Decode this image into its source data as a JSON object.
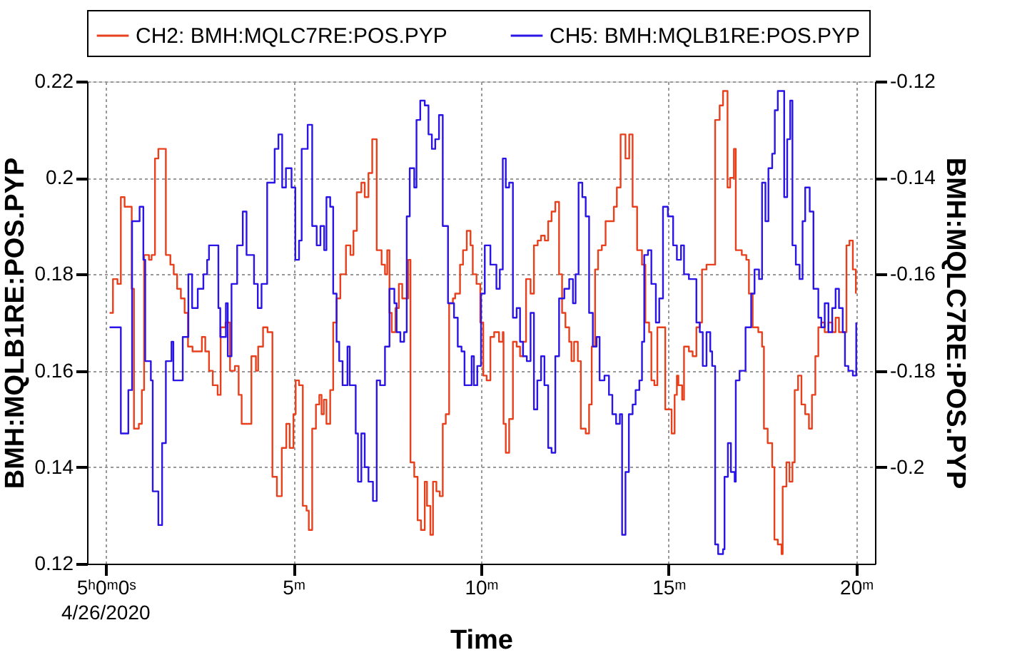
{
  "chart_data": {
    "type": "step",
    "xlabel": "Time",
    "ylabel": "BMH:MQLB1RE:POS.PYP",
    "y2label": "BMH:MQLC7RE:POS.PYP",
    "xlim": [
      -0.5,
      20.5
    ],
    "xticks": [
      {
        "value": 0,
        "label": "5ʰ0ᵐ0ˢ"
      },
      {
        "value": 5,
        "label": "5ᵐ"
      },
      {
        "value": 10,
        "label": "10ᵐ"
      },
      {
        "value": 15,
        "label": "15ᵐ"
      },
      {
        "value": 20,
        "label": "20ᵐ"
      }
    ],
    "ylim": [
      0.12,
      0.22
    ],
    "yticks": [
      0.12,
      0.14,
      0.16,
      0.18,
      0.2,
      0.22
    ],
    "y2lim": [
      -0.22,
      -0.12
    ],
    "y2ticks": [
      -0.2,
      -0.18,
      -0.16,
      -0.14,
      -0.12
    ],
    "grid": true,
    "legend": "top",
    "annotations": [
      "4/26/2020"
    ],
    "series": [
      {
        "name": "CH2: BMH:MQLC7RE:POS.PYP",
        "color": "#e8401c",
        "axis": "y2",
        "x": [
          0.1,
          0.19,
          0.31,
          0.4,
          0.5,
          0.62,
          0.69,
          0.75,
          0.88,
          0.96,
          1.02,
          1.15,
          1.22,
          1.31,
          1.4,
          1.6,
          1.72,
          1.81,
          1.9,
          2.0,
          2.1,
          2.19,
          2.31,
          2.44,
          2.56,
          2.65,
          2.75,
          2.85,
          2.98,
          3.06,
          3.19,
          3.31,
          3.44,
          3.54,
          3.62,
          3.75,
          3.88,
          4.0,
          4.06,
          4.19,
          4.31,
          4.44,
          4.56,
          4.69,
          4.81,
          4.9,
          5.0,
          5.06,
          5.15,
          5.25,
          5.35,
          5.41,
          5.5,
          5.6,
          5.69,
          5.75,
          5.81,
          5.88,
          5.98,
          6.06,
          6.15,
          6.25,
          6.4,
          6.52,
          6.6,
          6.69,
          6.81,
          6.9,
          7.0,
          7.1,
          7.22,
          7.35,
          7.44,
          7.5,
          7.56,
          7.62,
          7.72,
          7.81,
          7.9,
          8.06,
          8.12,
          8.22,
          8.31,
          8.4,
          8.5,
          8.56,
          8.65,
          8.72,
          8.81,
          8.9,
          8.98,
          9.06,
          9.15,
          9.25,
          9.31,
          9.44,
          9.52,
          9.62,
          9.72,
          9.78,
          9.88,
          9.98,
          10.06,
          10.15,
          10.25,
          10.35,
          10.48,
          10.58,
          10.6,
          10.66,
          10.75,
          10.85,
          10.95,
          11.04,
          11.12,
          11.2,
          11.32,
          11.41,
          11.51,
          11.6,
          11.7,
          11.79,
          11.88,
          11.98,
          12.08,
          12.16,
          12.25,
          12.35,
          12.41,
          12.48,
          12.58,
          12.66,
          12.79,
          12.88,
          12.95,
          13.04,
          13.12,
          13.22,
          13.32,
          13.45,
          13.54,
          13.62,
          13.72,
          13.85,
          13.95,
          14.04,
          14.16,
          14.29,
          14.38,
          14.48,
          14.54,
          14.62,
          14.7,
          14.79,
          14.91,
          15.0,
          15.08,
          15.16,
          15.22,
          15.26,
          15.36,
          15.41,
          15.54,
          15.64,
          15.74,
          15.83,
          15.89,
          16.01,
          16.16,
          16.24,
          16.36,
          16.45,
          16.54,
          16.57,
          16.64,
          16.74,
          16.79,
          16.95,
          17.07,
          17.14,
          17.24,
          17.39,
          17.49,
          17.54,
          17.64,
          17.76,
          17.82,
          17.91,
          18.01,
          18.04,
          18.14,
          18.22,
          18.3,
          18.36,
          18.45,
          18.54,
          18.64,
          18.74,
          18.82,
          18.91,
          18.99,
          19.07,
          19.16,
          19.26,
          19.36,
          19.45,
          19.54,
          19.64,
          19.74,
          19.82,
          19.91,
          19.99
        ],
        "values": [
          -0.168,
          -0.161,
          -0.162,
          -0.144,
          -0.146,
          -0.146,
          -0.163,
          -0.192,
          -0.191,
          -0.184,
          -0.156,
          -0.157,
          -0.156,
          -0.136,
          -0.134,
          -0.156,
          -0.158,
          -0.16,
          -0.163,
          -0.165,
          -0.168,
          -0.175,
          -0.176,
          -0.176,
          -0.173,
          -0.176,
          -0.18,
          -0.183,
          -0.185,
          -0.171,
          -0.17,
          -0.18,
          -0.179,
          -0.185,
          -0.191,
          -0.191,
          -0.177,
          -0.18,
          -0.175,
          -0.171,
          -0.172,
          -0.202,
          -0.206,
          -0.196,
          -0.191,
          -0.196,
          -0.189,
          -0.182,
          -0.183,
          -0.208,
          -0.209,
          -0.213,
          -0.192,
          -0.187,
          -0.185,
          -0.189,
          -0.186,
          -0.191,
          -0.184,
          -0.17,
          -0.165,
          -0.16,
          -0.154,
          -0.156,
          -0.151,
          -0.143,
          -0.141,
          -0.144,
          -0.139,
          -0.132,
          -0.155,
          -0.158,
          -0.16,
          -0.155,
          -0.168,
          -0.172,
          -0.167,
          -0.162,
          -0.165,
          -0.157,
          -0.199,
          -0.202,
          -0.211,
          -0.213,
          -0.203,
          -0.208,
          -0.214,
          -0.203,
          -0.205,
          -0.206,
          -0.191,
          -0.189,
          -0.166,
          -0.165,
          -0.164,
          -0.158,
          -0.155,
          -0.151,
          -0.154,
          -0.16,
          -0.162,
          -0.17,
          -0.181,
          -0.182,
          -0.173,
          -0.172,
          -0.174,
          -0.172,
          -0.191,
          -0.197,
          -0.19,
          -0.174,
          -0.175,
          -0.177,
          -0.174,
          -0.161,
          -0.164,
          -0.154,
          -0.153,
          -0.152,
          -0.153,
          -0.149,
          -0.147,
          -0.145,
          -0.16,
          -0.168,
          -0.171,
          -0.174,
          -0.178,
          -0.174,
          -0.178,
          -0.192,
          -0.193,
          -0.187,
          -0.175,
          -0.159,
          -0.155,
          -0.154,
          -0.149,
          -0.149,
          -0.146,
          -0.142,
          -0.131,
          -0.136,
          -0.131,
          -0.146,
          -0.155,
          -0.158,
          -0.17,
          -0.172,
          -0.182,
          -0.183,
          -0.171,
          -0.171,
          -0.188,
          -0.188,
          -0.193,
          -0.185,
          -0.181,
          -0.183,
          -0.186,
          -0.175,
          -0.176,
          -0.177,
          -0.171,
          -0.17,
          -0.159,
          -0.158,
          -0.158,
          -0.128,
          -0.125,
          -0.122,
          -0.122,
          -0.142,
          -0.14,
          -0.134,
          -0.155,
          -0.156,
          -0.157,
          -0.164,
          -0.171,
          -0.172,
          -0.175,
          -0.192,
          -0.195,
          -0.2,
          -0.215,
          -0.216,
          -0.218,
          -0.204,
          -0.199,
          -0.203,
          -0.199,
          -0.184,
          -0.181,
          -0.187,
          -0.189,
          -0.192,
          -0.185,
          -0.177,
          -0.171,
          -0.17,
          -0.172,
          -0.17,
          -0.172,
          -0.169,
          -0.172,
          -0.172,
          -0.154,
          -0.153,
          -0.159,
          -0.164
        ]
      },
      {
        "name": "CH5: BMH:MQLB1RE:POS.PYP",
        "color": "#2a14e6",
        "x": [
          0.1,
          0.4,
          0.6,
          0.7,
          0.9,
          1.0,
          1.05,
          1.2,
          1.25,
          1.4,
          1.5,
          1.6,
          1.75,
          1.8,
          2.05,
          2.2,
          2.3,
          2.45,
          2.6,
          2.7,
          2.75,
          3.0,
          3.05,
          3.2,
          3.25,
          3.35,
          3.5,
          3.65,
          3.75,
          3.95,
          4.05,
          4.15,
          4.3,
          4.5,
          4.6,
          4.7,
          4.8,
          4.95,
          5.05,
          5.15,
          5.22,
          5.38,
          5.5,
          5.62,
          5.72,
          5.82,
          5.88,
          5.98,
          6.06,
          6.15,
          6.22,
          6.31,
          6.44,
          6.5,
          6.66,
          6.72,
          6.81,
          6.9,
          7.0,
          7.12,
          7.22,
          7.31,
          7.44,
          7.56,
          7.69,
          7.75,
          7.85,
          7.95,
          8.02,
          8.1,
          8.22,
          8.28,
          8.38,
          8.5,
          8.6,
          8.69,
          8.78,
          8.88,
          8.98,
          9.12,
          9.28,
          9.38,
          9.48,
          9.56,
          9.65,
          9.75,
          9.81,
          9.9,
          10.0,
          10.1,
          10.25,
          10.41,
          10.5,
          10.58,
          10.66,
          10.75,
          10.85,
          10.95,
          11.04,
          11.12,
          11.22,
          11.32,
          11.41,
          11.5,
          11.6,
          11.69,
          11.79,
          11.88,
          11.98,
          12.08,
          12.22,
          12.35,
          12.45,
          12.52,
          12.6,
          12.7,
          12.79,
          12.88,
          12.98,
          13.08,
          13.16,
          13.29,
          13.41,
          13.5,
          13.6,
          13.7,
          13.76,
          13.85,
          13.94,
          14.04,
          14.12,
          14.22,
          14.29,
          14.35,
          14.45,
          14.54,
          14.66,
          14.75,
          14.85,
          14.98,
          15.12,
          15.22,
          15.33,
          15.41,
          15.54,
          15.74,
          15.83,
          15.91,
          16.01,
          16.11,
          16.16,
          16.24,
          16.32,
          16.45,
          16.49,
          16.58,
          16.66,
          16.76,
          16.79,
          16.89,
          17.05,
          17.2,
          17.29,
          17.41,
          17.49,
          17.58,
          17.66,
          17.76,
          17.83,
          17.91,
          18.08,
          18.16,
          18.24,
          18.3,
          18.39,
          18.49,
          18.57,
          18.64,
          18.76,
          18.86,
          18.99,
          19.07,
          19.16,
          19.26,
          19.36,
          19.45,
          19.54,
          19.64,
          19.7,
          19.79,
          19.91,
          20.0
        ],
        "values": [
          0.169,
          0.147,
          0.156,
          0.191,
          0.194,
          0.183,
          0.162,
          0.158,
          0.135,
          0.128,
          0.145,
          0.162,
          0.166,
          0.158,
          0.167,
          0.18,
          0.173,
          0.177,
          0.18,
          0.183,
          0.186,
          0.173,
          0.167,
          0.174,
          0.163,
          0.178,
          0.186,
          0.193,
          0.184,
          0.178,
          0.173,
          0.178,
          0.199,
          0.206,
          0.209,
          0.198,
          0.202,
          0.198,
          0.183,
          0.187,
          0.206,
          0.211,
          0.19,
          0.186,
          0.19,
          0.185,
          0.196,
          0.194,
          0.176,
          0.166,
          0.162,
          0.157,
          0.165,
          0.157,
          0.147,
          0.137,
          0.147,
          0.14,
          0.137,
          0.133,
          0.158,
          0.157,
          0.165,
          0.177,
          0.174,
          0.168,
          0.166,
          0.168,
          0.192,
          0.202,
          0.198,
          0.212,
          0.216,
          0.215,
          0.209,
          0.206,
          0.208,
          0.213,
          0.19,
          0.174,
          0.171,
          0.165,
          0.164,
          0.157,
          0.157,
          0.163,
          0.157,
          0.161,
          0.176,
          0.186,
          0.182,
          0.177,
          0.181,
          0.204,
          0.198,
          0.199,
          0.171,
          0.173,
          0.166,
          0.163,
          0.162,
          0.172,
          0.152,
          0.158,
          0.163,
          0.157,
          0.144,
          0.143,
          0.163,
          0.175,
          0.177,
          0.179,
          0.174,
          0.18,
          0.199,
          0.196,
          0.192,
          0.172,
          0.165,
          0.167,
          0.158,
          0.159,
          0.155,
          0.151,
          0.149,
          0.151,
          0.126,
          0.139,
          0.151,
          0.153,
          0.156,
          0.158,
          0.166,
          0.184,
          0.185,
          0.178,
          0.17,
          0.175,
          0.194,
          0.192,
          0.186,
          0.183,
          0.186,
          0.18,
          0.179,
          0.17,
          0.168,
          0.161,
          0.168,
          0.164,
          0.161,
          0.124,
          0.122,
          0.123,
          0.138,
          0.145,
          0.139,
          0.137,
          0.158,
          0.16,
          0.169,
          0.176,
          0.181,
          0.179,
          0.199,
          0.191,
          0.202,
          0.205,
          0.214,
          0.218,
          0.196,
          0.208,
          0.216,
          0.186,
          0.182,
          0.179,
          0.191,
          0.198,
          0.193,
          0.177,
          0.171,
          0.169,
          0.174,
          0.168,
          0.173,
          0.177,
          0.173,
          0.168,
          0.161,
          0.16,
          0.159,
          0.17
        ]
      }
    ]
  }
}
